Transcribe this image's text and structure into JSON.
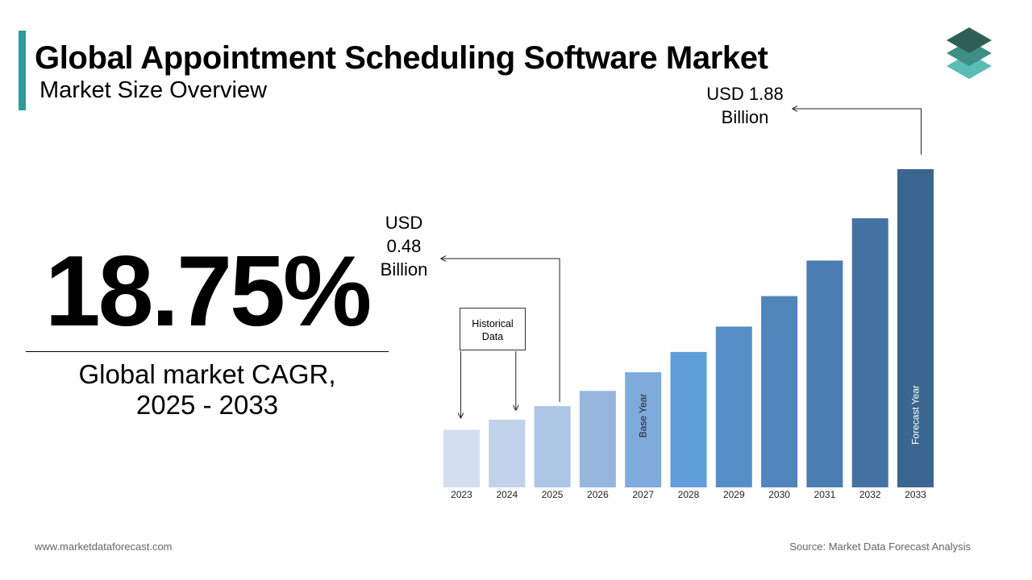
{
  "header": {
    "title": "Global Appointment Scheduling Software Market",
    "subtitle": "Market Size Overview"
  },
  "kpi": {
    "value": "18.75%",
    "label_line1": "Global market CAGR,",
    "label_line2": "2025 - 2033"
  },
  "callouts": {
    "value_2025": [
      "USD",
      "0.48",
      "Billion"
    ],
    "value_2033": [
      "USD 1.88",
      "Billion"
    ],
    "historical_data": [
      "Historical",
      "Data"
    ],
    "base_year": "Base Year",
    "forecast_year": "Forecast Year"
  },
  "footer": {
    "website": "www.marketdataforecast.com",
    "source": "Source: Market Data Forecast Analysis"
  },
  "colors": {
    "accent": "#2e9a9a",
    "bars": [
      "#d3deee",
      "#c1d3ea",
      "#aec6e5",
      "#95b7de",
      "#7eaadc",
      "#5f9ed8",
      "#568fc8",
      "#4f85bb",
      "#4a7db2",
      "#4372a3",
      "#3b6690"
    ]
  },
  "chart_data": {
    "type": "bar",
    "categories": [
      "2023",
      "2024",
      "2025",
      "2026",
      "2027",
      "2028",
      "2029",
      "2030",
      "2031",
      "2032",
      "2033"
    ],
    "values": [
      0.34,
      0.4,
      0.48,
      0.57,
      0.68,
      0.8,
      0.95,
      1.13,
      1.34,
      1.59,
      1.88
    ],
    "annotations": [
      {
        "category": "2025",
        "text": "USD 0.48 Billion"
      },
      {
        "category": "2033",
        "text": "USD 1.88 Billion"
      },
      {
        "category": "2027",
        "text": "Base Year"
      },
      {
        "category": "2033",
        "text": "Forecast Year"
      },
      {
        "categories": [
          "2023",
          "2024",
          "2025"
        ],
        "text": "Historical Data"
      }
    ],
    "ylim": [
      0,
      1.88
    ],
    "grid": false,
    "legend": "none"
  }
}
